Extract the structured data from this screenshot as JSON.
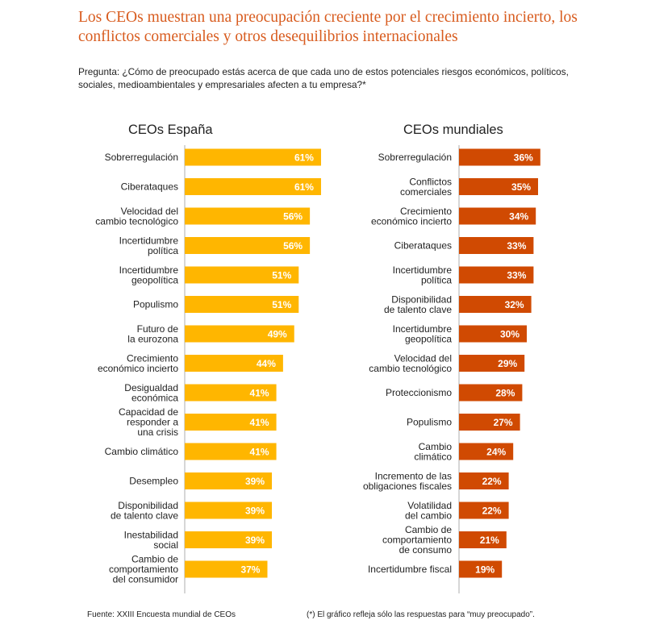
{
  "title": "Los CEOs muestran una preocupación creciente por el crecimiento incierto, los conflictos comerciales y otros desequilibrios internacionales",
  "question": "Pregunta: ¿Cómo de preocupado estás acerca de que cada uno de estos potenciales riesgos económicos, políticos, sociales, medioambientales y empresariales afecten a tu empresa?*",
  "colors": {
    "title": "#d85c1f",
    "spain_bar": "#ffb600",
    "world_bar": "#d04a02",
    "text": "#222222"
  },
  "chart_data": [
    {
      "type": "bar",
      "orientation": "horizontal",
      "title": "CEOs España",
      "unit": "%",
      "xlim": [
        0,
        100
      ],
      "categories": [
        "Sobrerregulación",
        "Ciberataques",
        "Velocidad del cambio tecnológico",
        "Incertidumbre política",
        "Incertidumbre geopolítica",
        "Populismo",
        "Futuro de la eurozona",
        "Crecimiento económico incierto",
        "Desigualdad económica",
        "Capacidad de responder a una crisis",
        "Cambio climático",
        "Desempleo",
        "Disponibilidad de talento clave",
        "Inestabilidad social",
        "Cambio de comportamiento del consumidor"
      ],
      "label_lines": [
        [
          "Sobrerregulación"
        ],
        [
          "Ciberataques"
        ],
        [
          "Velocidad del",
          "cambio tecnológico"
        ],
        [
          "Incertidumbre",
          "política"
        ],
        [
          "Incertidumbre",
          "geopolítica"
        ],
        [
          "Populismo"
        ],
        [
          "Futuro de",
          "la eurozona"
        ],
        [
          "Crecimiento",
          "económico incierto"
        ],
        [
          "Desigualdad",
          "económica"
        ],
        [
          "Capacidad de",
          "responder a",
          "una crisis"
        ],
        [
          "Cambio climático"
        ],
        [
          "Desempleo"
        ],
        [
          "Disponibilidad",
          "de talento clave"
        ],
        [
          "Inestabilidad",
          "social"
        ],
        [
          "Cambio de",
          "comportamiento",
          "del consumidor"
        ]
      ],
      "values": [
        61,
        61,
        56,
        56,
        51,
        51,
        49,
        44,
        41,
        41,
        41,
        39,
        39,
        39,
        37
      ],
      "value_labels": [
        "61%",
        "61%",
        "56%",
        "56%",
        "51%",
        "51%",
        "49%",
        "44%",
        "41%",
        "41%",
        "41%",
        "39%",
        "39%",
        "39%",
        "37%"
      ]
    },
    {
      "type": "bar",
      "orientation": "horizontal",
      "title": "CEOs mundiales",
      "unit": "%",
      "xlim": [
        0,
        100
      ],
      "categories": [
        "Sobrerregulación",
        "Conflictos comerciales",
        "Crecimiento económico incierto",
        "Ciberataques",
        "Incertidumbre política",
        "Disponibilidad de talento clave",
        "Incertidumbre geopolítica",
        "Velocidad del cambio tecnológico",
        "Proteccionismo",
        "Populismo",
        "Cambio climático",
        "Incremento de las obligaciones fiscales",
        "Volatilidad del cambio",
        "Cambio de comportamiento de consumo",
        "Incertidumbre fiscal"
      ],
      "label_lines": [
        [
          "Sobrerregulación"
        ],
        [
          "Conflictos",
          "comerciales"
        ],
        [
          "Crecimiento",
          "económico incierto"
        ],
        [
          "Ciberataques"
        ],
        [
          "Incertidumbre",
          "política"
        ],
        [
          "Disponibilidad",
          "de talento clave"
        ],
        [
          "Incertidumbre",
          "geopolítica"
        ],
        [
          "Velocidad del",
          "cambio tecnológico"
        ],
        [
          "Proteccionismo"
        ],
        [
          "Populismo"
        ],
        [
          "Cambio",
          "climático"
        ],
        [
          "Incremento de las",
          "obligaciones fiscales"
        ],
        [
          "Volatilidad",
          "del cambio"
        ],
        [
          "Cambio de",
          "comportamiento",
          "de consumo"
        ],
        [
          "Incertidumbre fiscal"
        ]
      ],
      "values": [
        36,
        35,
        34,
        33,
        33,
        32,
        30,
        29,
        28,
        27,
        24,
        22,
        22,
        21,
        19
      ],
      "value_labels": [
        "36%",
        "35%",
        "34%",
        "33%",
        "33%",
        "32%",
        "30%",
        "29%",
        "28%",
        "27%",
        "24%",
        "22%",
        "22%",
        "21%",
        "19%"
      ]
    }
  ],
  "footer": {
    "source": "Fuente: XXIII Encuesta mundial de CEOs",
    "note": "(*) El gráfico refleja sólo las respuestas para “muy preocupado”."
  }
}
